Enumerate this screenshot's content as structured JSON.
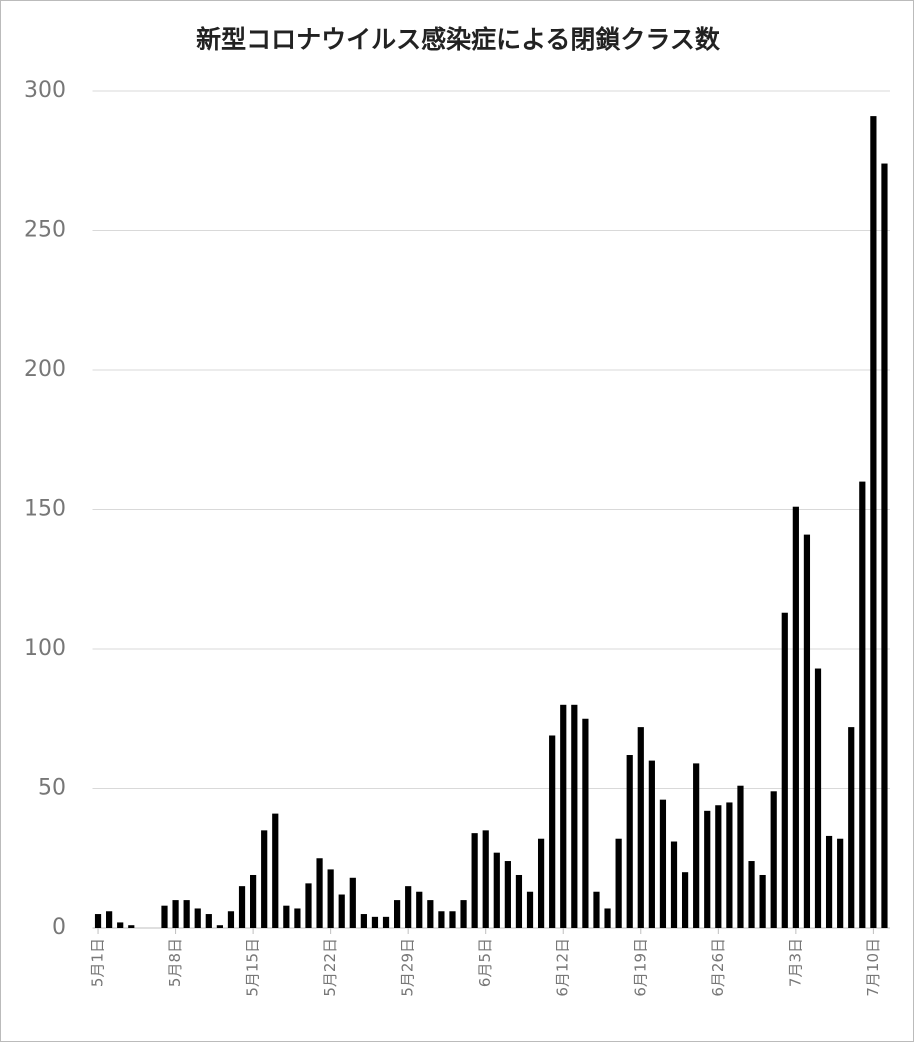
{
  "chart_data": {
    "type": "bar",
    "title": "新型コロナウイルス感染症による閉鎖クラス数",
    "categories": [
      "5月1日",
      null,
      null,
      null,
      null,
      null,
      null,
      "5月8日",
      null,
      null,
      null,
      null,
      null,
      null,
      "5月15日",
      null,
      null,
      null,
      null,
      null,
      null,
      "5月22日",
      null,
      null,
      null,
      null,
      null,
      null,
      "5月29日",
      null,
      null,
      null,
      null,
      null,
      null,
      "6月5日",
      null,
      null,
      null,
      null,
      null,
      null,
      "6月12日",
      null,
      null,
      null,
      null,
      null,
      null,
      "6月19日",
      null,
      null,
      null,
      null,
      null,
      null,
      "6月26日",
      null,
      null,
      null,
      null,
      null,
      null,
      "7月3日",
      null,
      null,
      null,
      null,
      null,
      null,
      "7月10日",
      null
    ],
    "values": [
      5,
      6,
      2,
      1,
      0,
      0,
      8,
      10,
      10,
      7,
      5,
      1,
      6,
      15,
      19,
      35,
      41,
      8,
      7,
      16,
      25,
      21,
      12,
      18,
      5,
      4,
      4,
      10,
      15,
      13,
      10,
      6,
      6,
      10,
      34,
      35,
      27,
      24,
      19,
      13,
      32,
      69,
      80,
      80,
      75,
      13,
      7,
      32,
      62,
      72,
      60,
      46,
      31,
      20,
      59,
      42,
      44,
      45,
      51,
      24,
      19,
      49,
      113,
      151,
      141,
      93,
      33,
      32,
      72,
      160,
      291,
      274
    ],
    "color": "#000000",
    "ylim": [
      0,
      300
    ],
    "yticks": [
      0,
      50,
      100,
      150,
      200,
      250,
      300
    ],
    "grid": true
  }
}
